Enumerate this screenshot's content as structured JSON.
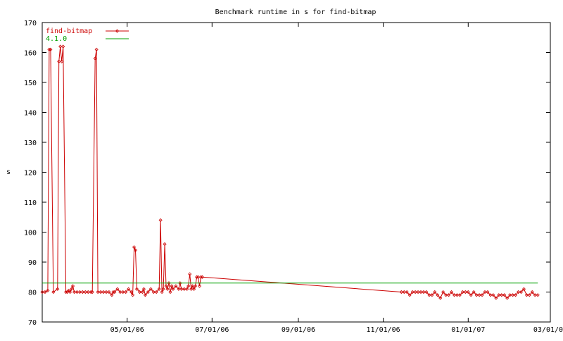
{
  "chart_data": {
    "type": "line",
    "title": "Benchmark runtime in s for find-bitmap",
    "xlabel": "",
    "ylabel": "s",
    "ylim": [
      70,
      170
    ],
    "xlim": [
      "2006-03-01",
      "2007-03-01"
    ],
    "x_ticks": [
      "05/01/06",
      "07/01/06",
      "09/01/06",
      "11/01/06",
      "01/01/07",
      "03/01/07"
    ],
    "y_ticks": [
      70,
      80,
      90,
      100,
      110,
      120,
      130,
      140,
      150,
      160,
      170
    ],
    "grid": false,
    "legend": "top-left",
    "series": [
      {
        "name": "find-bitmap",
        "color": "#cc0000",
        "marker": "diamond",
        "points": [
          [
            "2006-03-01",
            80
          ],
          [
            "2006-03-03",
            80
          ],
          [
            "2006-03-05",
            80.5
          ],
          [
            "2006-03-06",
            161
          ],
          [
            "2006-03-07",
            161
          ],
          [
            "2006-03-09",
            80
          ],
          [
            "2006-03-12",
            81
          ],
          [
            "2006-03-13",
            157
          ],
          [
            "2006-03-14",
            162
          ],
          [
            "2006-03-15",
            157
          ],
          [
            "2006-03-16",
            162
          ],
          [
            "2006-03-18",
            80
          ],
          [
            "2006-03-19",
            80
          ],
          [
            "2006-03-20",
            80.5
          ],
          [
            "2006-03-21",
            80
          ],
          [
            "2006-03-22",
            81
          ],
          [
            "2006-03-23",
            82
          ],
          [
            "2006-03-24",
            80
          ],
          [
            "2006-03-26",
            80
          ],
          [
            "2006-03-28",
            80
          ],
          [
            "2006-03-30",
            80
          ],
          [
            "2006-04-01",
            80
          ],
          [
            "2006-04-03",
            80
          ],
          [
            "2006-04-05",
            80
          ],
          [
            "2006-04-06",
            80
          ],
          [
            "2006-04-08",
            158
          ],
          [
            "2006-04-09",
            161
          ],
          [
            "2006-04-10",
            80
          ],
          [
            "2006-04-12",
            80
          ],
          [
            "2006-04-14",
            80
          ],
          [
            "2006-04-16",
            80
          ],
          [
            "2006-04-18",
            80
          ],
          [
            "2006-04-20",
            79
          ],
          [
            "2006-04-21",
            80
          ],
          [
            "2006-04-22",
            80
          ],
          [
            "2006-04-24",
            81
          ],
          [
            "2006-04-26",
            80
          ],
          [
            "2006-04-28",
            80
          ],
          [
            "2006-04-30",
            80
          ],
          [
            "2006-05-02",
            81
          ],
          [
            "2006-05-04",
            80
          ],
          [
            "2006-05-05",
            79
          ],
          [
            "2006-05-06",
            95
          ],
          [
            "2006-05-07",
            94
          ],
          [
            "2006-05-08",
            81
          ],
          [
            "2006-05-10",
            80
          ],
          [
            "2006-05-12",
            80
          ],
          [
            "2006-05-13",
            81
          ],
          [
            "2006-05-14",
            79
          ],
          [
            "2006-05-16",
            80
          ],
          [
            "2006-05-18",
            81
          ],
          [
            "2006-05-20",
            80
          ],
          [
            "2006-05-22",
            80
          ],
          [
            "2006-05-24",
            81
          ],
          [
            "2006-05-25",
            104
          ],
          [
            "2006-05-26",
            80
          ],
          [
            "2006-05-27",
            81
          ],
          [
            "2006-05-28",
            96
          ],
          [
            "2006-05-29",
            82
          ],
          [
            "2006-05-30",
            81
          ],
          [
            "2006-05-31",
            83
          ],
          [
            "2006-06-01",
            80
          ],
          [
            "2006-06-02",
            82
          ],
          [
            "2006-06-03",
            81
          ],
          [
            "2006-06-05",
            82
          ],
          [
            "2006-06-07",
            81
          ],
          [
            "2006-06-08",
            83
          ],
          [
            "2006-06-09",
            81
          ],
          [
            "2006-06-11",
            81
          ],
          [
            "2006-06-13",
            81
          ],
          [
            "2006-06-14",
            82
          ],
          [
            "2006-06-15",
            86
          ],
          [
            "2006-06-16",
            81
          ],
          [
            "2006-06-17",
            82
          ],
          [
            "2006-06-18",
            81
          ],
          [
            "2006-06-19",
            82
          ],
          [
            "2006-06-20",
            85
          ],
          [
            "2006-06-21",
            85
          ],
          [
            "2006-06-22",
            82
          ],
          [
            "2006-06-23",
            85
          ],
          [
            "2006-06-24",
            85
          ],
          [
            "2006-11-14",
            80
          ],
          [
            "2006-11-16",
            80
          ],
          [
            "2006-11-18",
            80
          ],
          [
            "2006-11-20",
            79
          ],
          [
            "2006-11-22",
            80
          ],
          [
            "2006-11-24",
            80
          ],
          [
            "2006-11-26",
            80
          ],
          [
            "2006-11-28",
            80
          ],
          [
            "2006-11-30",
            80
          ],
          [
            "2006-12-02",
            80
          ],
          [
            "2006-12-04",
            79
          ],
          [
            "2006-12-06",
            79
          ],
          [
            "2006-12-08",
            80
          ],
          [
            "2006-12-10",
            79
          ],
          [
            "2006-12-12",
            78
          ],
          [
            "2006-12-14",
            80
          ],
          [
            "2006-12-16",
            79
          ],
          [
            "2006-12-18",
            79
          ],
          [
            "2006-12-20",
            80
          ],
          [
            "2006-12-22",
            79
          ],
          [
            "2006-12-24",
            79
          ],
          [
            "2006-12-26",
            79
          ],
          [
            "2006-12-28",
            80
          ],
          [
            "2006-12-30",
            80
          ],
          [
            "2007-01-01",
            80
          ],
          [
            "2007-01-03",
            79
          ],
          [
            "2007-01-05",
            80
          ],
          [
            "2007-01-07",
            79
          ],
          [
            "2007-01-09",
            79
          ],
          [
            "2007-01-11",
            79
          ],
          [
            "2007-01-13",
            80
          ],
          [
            "2007-01-15",
            80
          ],
          [
            "2007-01-17",
            79
          ],
          [
            "2007-01-19",
            79
          ],
          [
            "2007-01-21",
            78
          ],
          [
            "2007-01-23",
            79
          ],
          [
            "2007-01-25",
            79
          ],
          [
            "2007-01-27",
            79
          ],
          [
            "2007-01-29",
            78
          ],
          [
            "2007-01-31",
            79
          ],
          [
            "2007-02-02",
            79
          ],
          [
            "2007-02-04",
            79
          ],
          [
            "2007-02-06",
            80
          ],
          [
            "2007-02-08",
            80
          ],
          [
            "2007-02-10",
            81
          ],
          [
            "2007-02-12",
            79
          ],
          [
            "2007-02-14",
            79
          ],
          [
            "2007-02-16",
            80
          ],
          [
            "2007-02-18",
            79
          ],
          [
            "2007-02-20",
            79
          ]
        ]
      },
      {
        "name": "4.1.0",
        "color": "#00a000",
        "marker": "none",
        "points": [
          [
            "2006-03-01",
            83
          ],
          [
            "2007-02-20",
            83
          ]
        ]
      }
    ]
  }
}
